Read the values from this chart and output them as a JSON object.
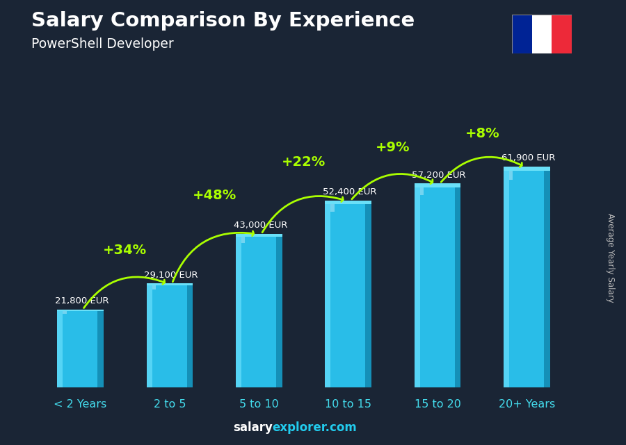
{
  "title": "Salary Comparison By Experience",
  "subtitle": "PowerShell Developer",
  "categories": [
    "< 2 Years",
    "2 to 5",
    "5 to 10",
    "10 to 15",
    "15 to 20",
    "20+ Years"
  ],
  "values": [
    21800,
    29100,
    43000,
    52400,
    57200,
    61900
  ],
  "labels": [
    "21,800 EUR",
    "29,100 EUR",
    "43,000 EUR",
    "52,400 EUR",
    "57,200 EUR",
    "61,900 EUR"
  ],
  "pct_changes": [
    "+34%",
    "+48%",
    "+22%",
    "+9%",
    "+8%"
  ],
  "bar_color_main": "#29bde8",
  "bar_color_light": "#55d4f5",
  "bar_color_dark": "#1590b8",
  "bar_color_top": "#6ae0f8",
  "bg_color": "#1a2535",
  "text_color": "#ffffff",
  "pct_color": "#aaff00",
  "xlabel_color": "#44ddee",
  "ylabel": "Average Yearly Salary",
  "footer_salary": "salary",
  "footer_explorer": "explorer.com",
  "ylim_max": 75000,
  "flag_blue": "#002395",
  "flag_white": "#ffffff",
  "flag_red": "#ED2939"
}
